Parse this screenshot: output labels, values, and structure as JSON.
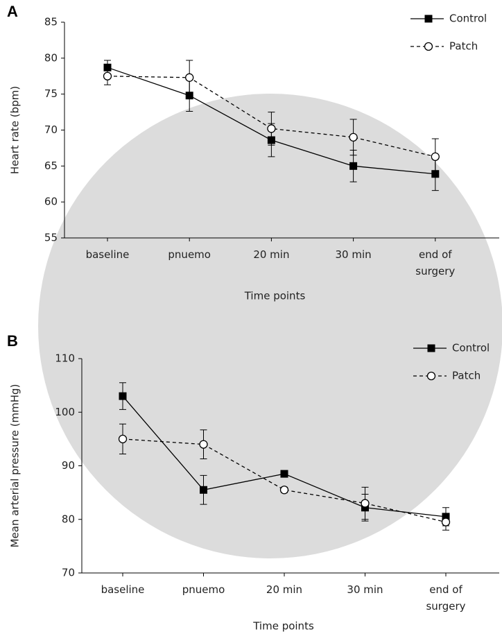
{
  "chart_data": [
    {
      "type": "line",
      "panel_label": "A",
      "y_label": "Heart rate (bpm)",
      "x_label": "Time points",
      "categories": [
        "baseline",
        "pnuemo",
        "20 min",
        "30 min",
        "end of surgery"
      ],
      "ylim": [
        55,
        85
      ],
      "yticks": [
        55,
        60,
        65,
        70,
        75,
        80,
        85
      ],
      "grid": false,
      "legend": "top-right",
      "series": [
        {
          "name": "Control",
          "color": "#000000",
          "marker": "filled-square",
          "line_style": "solid",
          "values": [
            78.7,
            74.8,
            68.6,
            65.0,
            63.9
          ],
          "errors": [
            1.0,
            2.2,
            2.3,
            2.2,
            2.3
          ]
        },
        {
          "name": "Patch",
          "color": "#000000",
          "marker": "open-circle",
          "line_style": "dashed",
          "values": [
            77.5,
            77.3,
            70.2,
            69.0,
            66.3
          ],
          "errors": [
            1.2,
            2.4,
            2.3,
            2.5,
            2.5
          ]
        }
      ]
    },
    {
      "type": "line",
      "panel_label": "B",
      "y_label": "Mean arterial pressure (mmHg)",
      "x_label": "Time points",
      "categories": [
        "baseline",
        "pnuemo",
        "20 min",
        "30 min",
        "end of surgery"
      ],
      "ylim": [
        70,
        110
      ],
      "yticks": [
        70,
        80,
        90,
        100,
        110
      ],
      "grid": false,
      "legend": "top-right",
      "series": [
        {
          "name": "Control",
          "color": "#000000",
          "marker": "filled-square",
          "line_style": "solid",
          "values": [
            103.0,
            85.5,
            88.5,
            82.2,
            80.5
          ],
          "errors": [
            2.5,
            2.7,
            0.5,
            2.5,
            1.7
          ]
        },
        {
          "name": "Patch",
          "color": "#000000",
          "marker": "open-circle",
          "line_style": "dashed",
          "values": [
            95.0,
            94.0,
            85.5,
            83.0,
            79.5
          ],
          "errors": [
            2.8,
            2.7,
            0.5,
            3.0,
            1.5
          ]
        }
      ]
    }
  ]
}
